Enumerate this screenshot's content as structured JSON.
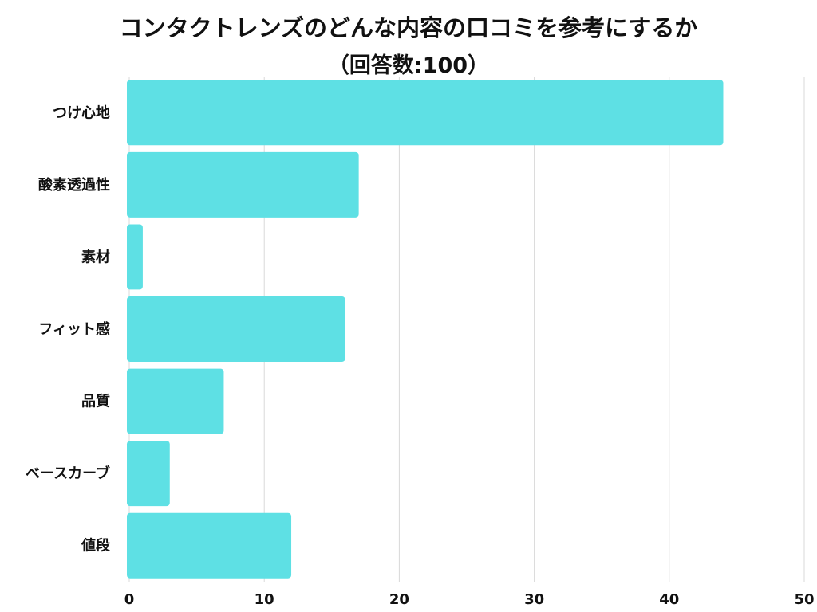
{
  "title": "コンタクトレンズのどんな内容の口コミを参考にするか",
  "subtitle": "（回答数:100）",
  "colors": {
    "bar": "#5ee0e4",
    "grid": "#d9d9d9",
    "text": "#111111"
  },
  "chart_data": {
    "type": "bar",
    "orientation": "horizontal",
    "title": "コンタクトレンズのどんな内容の口コミを参考にするか",
    "subtitle": "（回答数:100）",
    "categories": [
      "つけ心地",
      "酸素透過性",
      "素材",
      "フィット感",
      "品質",
      "ベースカーブ",
      "値段"
    ],
    "values": [
      44,
      17,
      1,
      16,
      7,
      3,
      12
    ],
    "xlim": [
      0,
      50
    ],
    "xticks": [
      0,
      10,
      20,
      30,
      40,
      50
    ],
    "grid": true
  }
}
